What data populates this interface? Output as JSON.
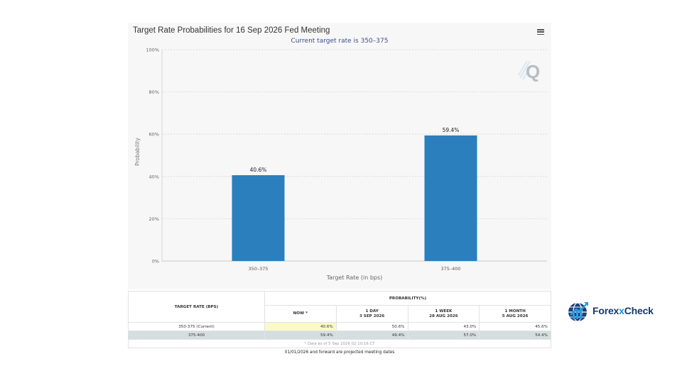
{
  "chart_data": {
    "type": "bar",
    "title": "Target Rate Probabilities for 16 Sep 2026 Fed Meeting",
    "subtitle": "Current target rate is 350–375",
    "xlabel": "Target Rate (in bps)",
    "ylabel": "Probability",
    "categories": [
      "350–375",
      "375–400"
    ],
    "values": [
      40.6,
      59.4
    ],
    "data_labels": [
      "40.6%",
      "59.4%"
    ],
    "ylim": [
      0,
      100
    ],
    "yticks": [
      0,
      20,
      40,
      60,
      80,
      100
    ],
    "ytick_labels": [
      "0%",
      "20%",
      "40%",
      "60%",
      "80%",
      "100%"
    ],
    "grid": true,
    "bar_color": "#2b7fbd"
  },
  "table": {
    "rate_header": "TARGET RATE (BPS)",
    "prob_header": "PROBABILITY(%)",
    "columns": [
      {
        "line1": "NOW *",
        "line2": ""
      },
      {
        "line1": "1 DAY",
        "line2": "3 SEP 2026"
      },
      {
        "line1": "1 WEEK",
        "line2": "28 AUG 2026"
      },
      {
        "line1": "1 MONTH",
        "line2": "5 AUG 2026"
      }
    ],
    "rows": [
      {
        "rate": "350-375 (Current)",
        "values": [
          "40.6%",
          "50.6%",
          "43.0%",
          "45.6%"
        ]
      },
      {
        "rate": "375-400",
        "values": [
          "59.4%",
          "49.4%",
          "57.0%",
          "54.4%"
        ]
      }
    ],
    "note": "* Data as of 5 Sep 2026 02:10:16 CT",
    "footer": "01/01/2026 and forward are projected meeting dates"
  },
  "logo": {
    "text_before": "Forex",
    "text_x": "x",
    "text_after": "Check"
  }
}
